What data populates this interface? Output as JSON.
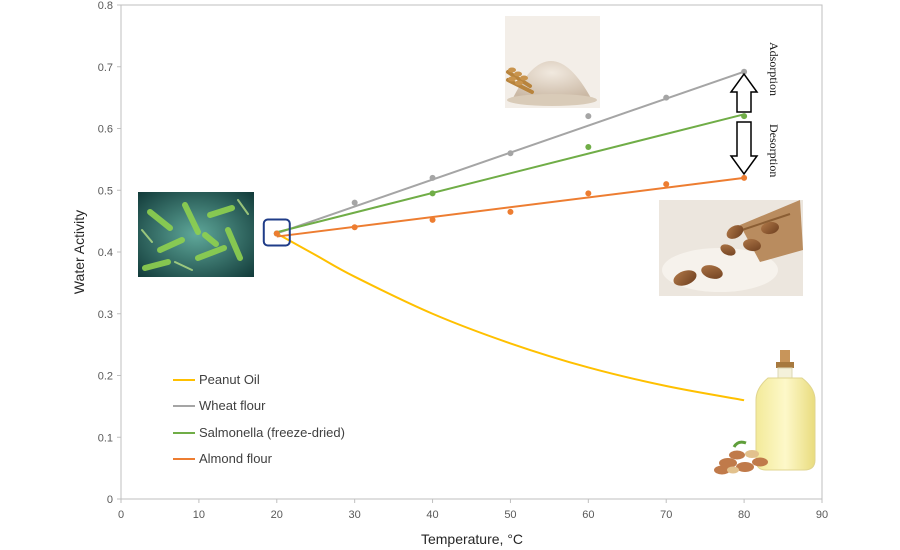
{
  "chart_data": {
    "type": "line",
    "xlabel": "Temperature, °C",
    "ylabel": "Water Activity",
    "xlim": [
      0,
      90
    ],
    "ylim": [
      0,
      0.8
    ],
    "xticks": [
      "0",
      "10",
      "20",
      "30",
      "40",
      "50",
      "60",
      "70",
      "80",
      "90"
    ],
    "yticks": [
      "0",
      "0.1",
      "0.2",
      "0.3",
      "0.4",
      "0.5",
      "0.6",
      "0.7",
      "0.8"
    ],
    "grid": false,
    "legend_position": "lower-left",
    "series": [
      {
        "name": "Peanut Oil",
        "color": "#FFC000",
        "style": "curve",
        "points": [],
        "fit": [
          [
            20,
            0.43
          ],
          [
            25,
            0.395
          ],
          [
            30,
            0.36
          ],
          [
            40,
            0.3
          ],
          [
            50,
            0.252
          ],
          [
            60,
            0.213
          ],
          [
            70,
            0.183
          ],
          [
            80,
            0.16
          ]
        ]
      },
      {
        "name": "Wheat flour",
        "color": "#A5A5A5",
        "style": "linear",
        "points": [
          [
            20,
            0.43
          ],
          [
            30,
            0.48
          ],
          [
            40,
            0.52
          ],
          [
            50,
            0.56
          ],
          [
            60,
            0.62
          ],
          [
            70,
            0.65
          ],
          [
            80,
            0.692
          ]
        ],
        "fit": [
          [
            20,
            0.43
          ],
          [
            80,
            0.692
          ]
        ]
      },
      {
        "name": "Salmonella (freeze-dried)",
        "color": "#70AD47",
        "style": "linear",
        "points": [
          [
            20,
            0.43
          ],
          [
            40,
            0.495
          ],
          [
            60,
            0.57
          ],
          [
            80,
            0.62
          ]
        ],
        "fit": [
          [
            20,
            0.432
          ],
          [
            80,
            0.623
          ]
        ]
      },
      {
        "name": "Almond flour",
        "color": "#ED7D31",
        "style": "linear",
        "points": [
          [
            20,
            0.43
          ],
          [
            30,
            0.44
          ],
          [
            40,
            0.452
          ],
          [
            50,
            0.465
          ],
          [
            60,
            0.495
          ],
          [
            70,
            0.51
          ],
          [
            80,
            0.52
          ]
        ],
        "fit": [
          [
            20,
            0.425
          ],
          [
            80,
            0.52
          ]
        ]
      }
    ],
    "annotations": {
      "adsorption": "Adsorption",
      "desorption": "Desorption"
    },
    "highlight_point": [
      20,
      0.43
    ]
  },
  "images": {
    "bacteria": "bacteria-image",
    "flour": "wheat-flour-image",
    "almond": "almond-flour-image",
    "oil": "peanut-oil-image"
  }
}
